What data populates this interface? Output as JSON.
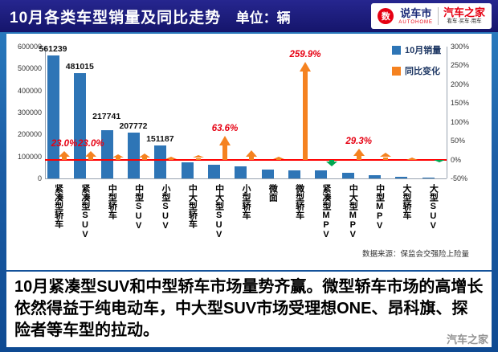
{
  "header": {
    "title": "10月各类车型销量及同比走势",
    "unit_label": "单位：辆",
    "logo": {
      "badge_char": "数",
      "name": "说车市",
      "name_sub": "AUTOHOME",
      "brand": "汽车之家",
      "slogan": "看车·买车·用车"
    }
  },
  "chart_data": {
    "type": "bar",
    "title": "10月各类车型销量及同比走势",
    "unit": "辆",
    "categories": [
      "紧凑型轿车",
      "紧凑型SUV",
      "中型轿车",
      "中型SUV",
      "小型SUV",
      "中大型轿车",
      "中大型SUV",
      "小型轿车",
      "微面",
      "微型轿车",
      "紧凑型MPV",
      "中大型MPV",
      "中型MPV",
      "大型轿车",
      "大型SUV"
    ],
    "series": [
      {
        "name": "10月销量",
        "axis": "left",
        "color": "#2E75B6",
        "values": [
          561239,
          481015,
          217741,
          207772,
          151187,
          75000,
          62000,
          56000,
          42000,
          38000,
          35000,
          26000,
          13000,
          8000,
          4000
        ],
        "value_labels": [
          "561239",
          "481015",
          "217741",
          "207772",
          "151187",
          "",
          "",
          "",
          "",
          "",
          "",
          "",
          "",
          "",
          ""
        ]
      },
      {
        "name": "同比变化",
        "axis": "right",
        "color_up": "#F58220",
        "color_down": "#00A650",
        "values_pct": [
          23.0,
          23.0,
          15,
          17,
          8,
          12,
          63.6,
          25,
          8,
          259.9,
          -20,
          29.3,
          18,
          5,
          -3
        ],
        "value_labels": [
          "23.0%",
          "23.0%",
          "",
          "",
          "",
          "",
          "63.6%",
          "",
          "",
          "259.9%",
          "",
          "29.3%",
          "",
          "",
          ""
        ]
      }
    ],
    "left_axis": {
      "min": 0,
      "max": 600000,
      "step": 100000,
      "ticks": [
        "0",
        "100000",
        "200000",
        "300000",
        "400000",
        "500000",
        "600000"
      ]
    },
    "right_axis": {
      "min": -50,
      "max": 300,
      "step": 50,
      "ticks": [
        "-50%",
        "0%",
        "50%",
        "100%",
        "150%",
        "200%",
        "250%",
        "300%"
      ]
    },
    "zero_line_color": "#FF0000",
    "legend": {
      "position": "top-right",
      "items": [
        {
          "label": "10月销量",
          "color": "#2E75B6"
        },
        {
          "label": "同比变化",
          "color": "#F58220"
        }
      ]
    },
    "source": "数据来源：保监会交强险上险量",
    "grid": false
  },
  "summary": {
    "text": "10月紧凑型SUV和中型轿车市场量势齐赢。微型轿车市场的高增长依然得益于纯电动车，中大型SUV市场受理想ONE、昂科旗、探险者等车型的拉动。"
  },
  "watermark": "汽车之家"
}
